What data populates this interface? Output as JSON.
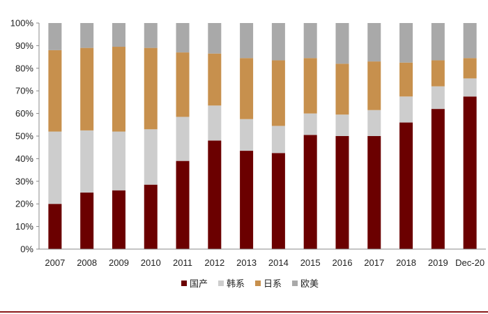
{
  "chart_data": {
    "type": "bar",
    "stacked": true,
    "percent_stacked": true,
    "categories": [
      "2007",
      "2008",
      "2009",
      "2010",
      "2011",
      "2012",
      "2013",
      "2014",
      "2015",
      "2016",
      "2017",
      "2018",
      "2019",
      "Dec-20"
    ],
    "series": [
      {
        "name": "国产",
        "color": "#6b0000",
        "values": [
          20,
          25,
          26,
          28.5,
          39,
          48,
          43.5,
          42.5,
          50.5,
          50,
          50,
          56,
          62,
          67.5
        ]
      },
      {
        "name": "韩系",
        "color": "#cdcdcd",
        "values": [
          32,
          27.5,
          26,
          24.5,
          19.5,
          15.5,
          14,
          12,
          9.5,
          9.5,
          11.5,
          11.5,
          10,
          8
        ]
      },
      {
        "name": "日系",
        "color": "#c7904d",
        "values": [
          36,
          36.5,
          37.5,
          36,
          28.5,
          23,
          27,
          29,
          24.5,
          22.5,
          21.5,
          15,
          11.5,
          9
        ]
      },
      {
        "name": "欧美",
        "color": "#a9a9a9",
        "values": [
          12,
          11,
          10.5,
          11,
          13,
          13.5,
          15.5,
          16.5,
          15.5,
          18,
          17,
          17.5,
          16.5,
          15.5
        ]
      }
    ],
    "yticks": [
      "0%",
      "10%",
      "20%",
      "30%",
      "40%",
      "50%",
      "60%",
      "70%",
      "80%",
      "90%",
      "100%"
    ],
    "ylim": [
      0,
      100
    ],
    "grid": false,
    "legend_position": "bottom"
  }
}
